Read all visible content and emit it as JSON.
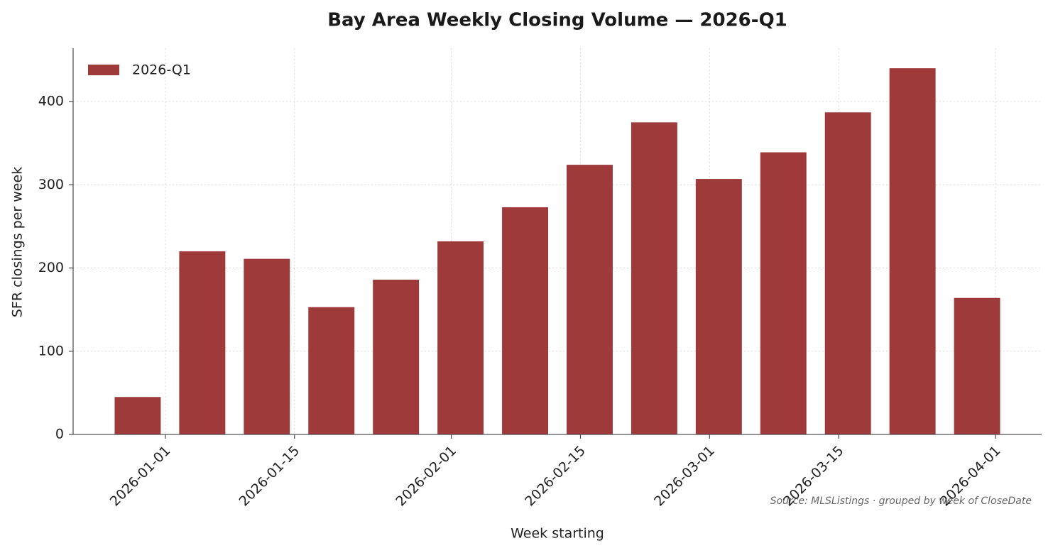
{
  "chart_data": {
    "type": "bar",
    "title": "Bay Area Weekly Closing Volume — 2026-Q1",
    "x_label": "Week starting",
    "y_label": "SFR closings per week",
    "annotation": "Source: MLSListings · grouped by week of CloseDate",
    "x": [
      "2025-12-29",
      "2026-01-05",
      "2026-01-12",
      "2026-01-19",
      "2026-01-26",
      "2026-02-02",
      "2026-02-09",
      "2026-02-16",
      "2026-02-23",
      "2026-03-02",
      "2026-03-09",
      "2026-03-16",
      "2026-03-23",
      "2026-03-30"
    ],
    "series": [
      {
        "name": "2026-Q1",
        "color": "#9e3a3a",
        "values": [
          45,
          220,
          211,
          153,
          186,
          232,
          273,
          324,
          375,
          307,
          339,
          387,
          440,
          164
        ]
      }
    ],
    "xlim": [
      "2025-12-22",
      "2026-04-06"
    ],
    "xticks": [
      "2026-01-01",
      "2026-01-15",
      "2026-02-01",
      "2026-02-15",
      "2026-03-01",
      "2026-03-15",
      "2026-04-01"
    ],
    "ylim": [
      0,
      464
    ],
    "yticks": [
      0,
      100,
      200,
      300,
      400
    ],
    "grid": true,
    "legend": "upper left"
  }
}
